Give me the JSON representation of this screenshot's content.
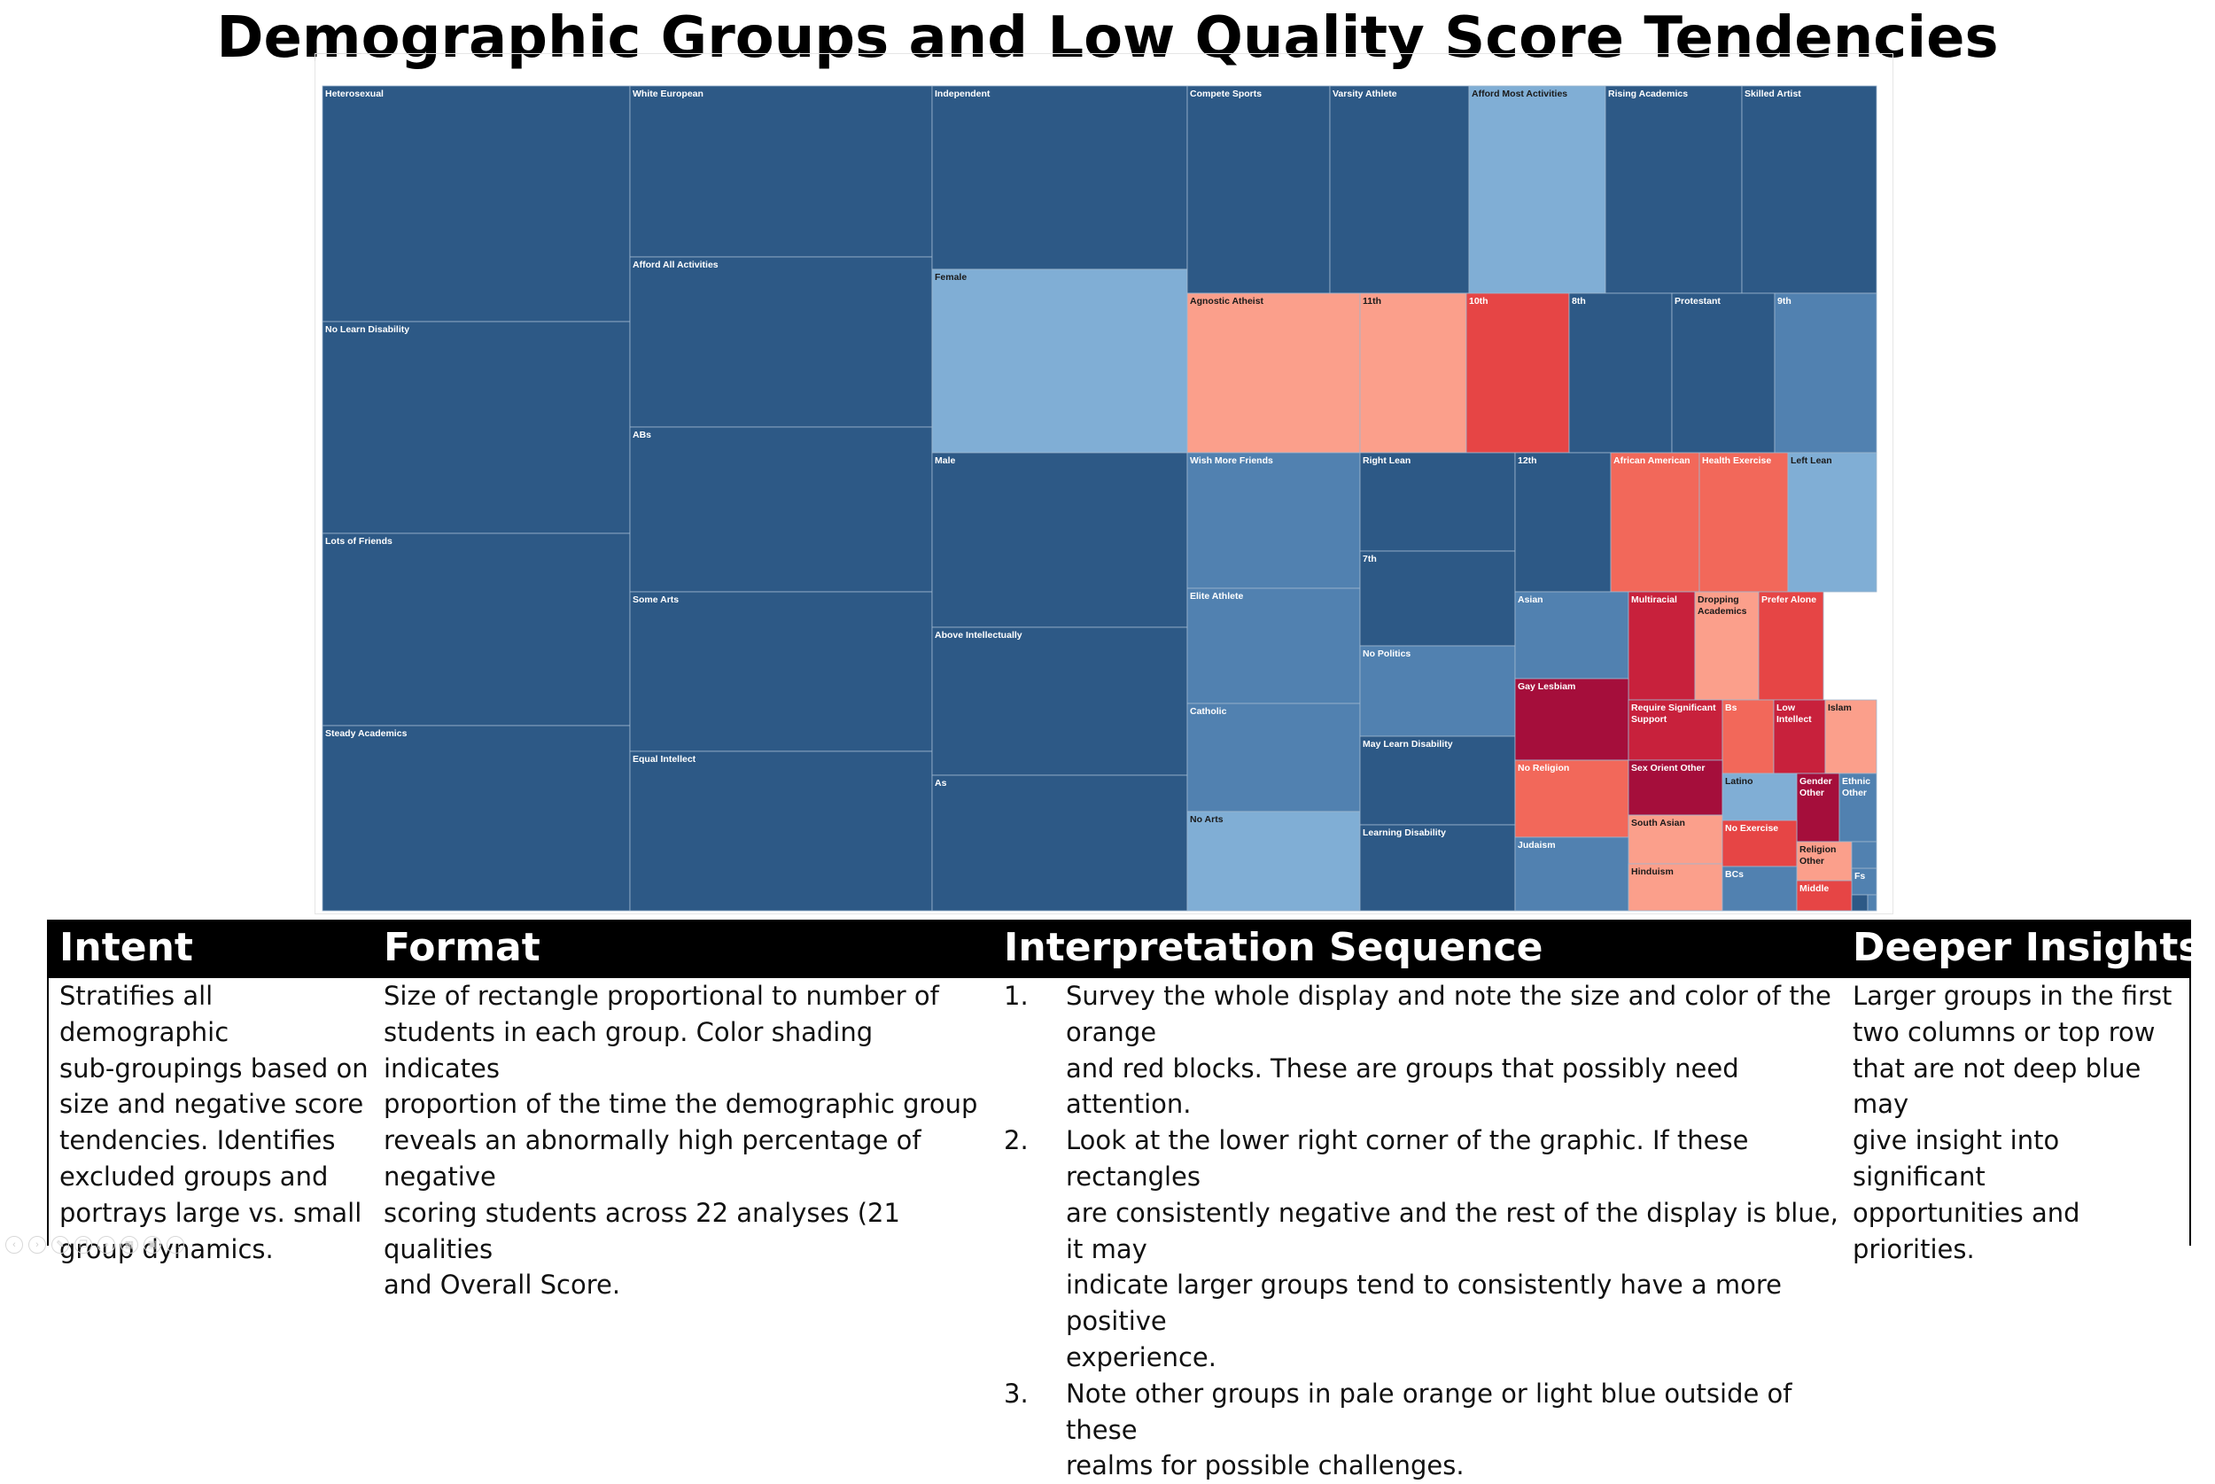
{
  "chart_data": {
    "type": "treemap",
    "title": "Demographic Groups and Low Quality Score Tendencies",
    "size_meaning": "number of students in each group",
    "color_meaning": "proportion of negative-score analyses (blue = low, red = high)",
    "colors": {
      "deep_blue": "#2d5986",
      "mid_blue": "#5181b0",
      "light_blue": "#80aed5",
      "pale_orange": "#fb9f8b",
      "orange_red": "#f2685a",
      "red": "#e64545",
      "crimson": "#c8213c",
      "dark_crimson": "#a50e3b"
    },
    "groups": [
      {
        "label": "Heterosexual",
        "color": "deep_blue"
      },
      {
        "label": "No Learn Disability",
        "color": "deep_blue"
      },
      {
        "label": "Lots of Friends",
        "color": "deep_blue"
      },
      {
        "label": "Steady Academics",
        "color": "deep_blue"
      },
      {
        "label": "White European",
        "color": "deep_blue"
      },
      {
        "label": "Afford All Activities",
        "color": "deep_blue"
      },
      {
        "label": "ABs",
        "color": "deep_blue"
      },
      {
        "label": "Some Arts",
        "color": "deep_blue"
      },
      {
        "label": "Equal Intellect",
        "color": "deep_blue"
      },
      {
        "label": "Independent",
        "color": "deep_blue"
      },
      {
        "label": "Female",
        "color": "light_blue"
      },
      {
        "label": "Male",
        "color": "deep_blue"
      },
      {
        "label": "Above Intellectually",
        "color": "deep_blue"
      },
      {
        "label": "As",
        "color": "deep_blue"
      },
      {
        "label": "Compete Sports",
        "color": "deep_blue"
      },
      {
        "label": "Varsity Athlete",
        "color": "deep_blue"
      },
      {
        "label": "Afford Most Activities",
        "color": "light_blue"
      },
      {
        "label": "Rising Academics",
        "color": "deep_blue"
      },
      {
        "label": "Skilled Artist",
        "color": "deep_blue"
      },
      {
        "label": "Agnostic Atheist",
        "color": "pale_orange"
      },
      {
        "label": "11th",
        "color": "pale_orange"
      },
      {
        "label": "10th",
        "color": "red"
      },
      {
        "label": "8th",
        "color": "deep_blue"
      },
      {
        "label": "Protestant",
        "color": "deep_blue"
      },
      {
        "label": "9th",
        "color": "mid_blue"
      },
      {
        "label": "Wish More Friends",
        "color": "mid_blue"
      },
      {
        "label": "Elite Athlete",
        "color": "mid_blue"
      },
      {
        "label": "Catholic",
        "color": "mid_blue"
      },
      {
        "label": "No Arts",
        "color": "light_blue"
      },
      {
        "label": "Right Lean",
        "color": "deep_blue"
      },
      {
        "label": "7th",
        "color": "deep_blue"
      },
      {
        "label": "No Politics",
        "color": "mid_blue"
      },
      {
        "label": "May Learn Disability",
        "color": "deep_blue"
      },
      {
        "label": "Learning Disability",
        "color": "deep_blue"
      },
      {
        "label": "12th",
        "color": "deep_blue"
      },
      {
        "label": "African American",
        "color": "orange_red"
      },
      {
        "label": "Health Exercise",
        "color": "orange_red"
      },
      {
        "label": "Left Lean",
        "color": "light_blue"
      },
      {
        "label": "Asian",
        "color": "mid_blue"
      },
      {
        "label": "Multiracial",
        "color": "crimson"
      },
      {
        "label": "Dropping Academics",
        "color": "pale_orange"
      },
      {
        "label": "Prefer Alone",
        "color": "red"
      },
      {
        "label": "Gay Lesbiam",
        "color": "dark_crimson"
      },
      {
        "label": "Require Significant Support",
        "color": "crimson"
      },
      {
        "label": "Bs",
        "color": "orange_red"
      },
      {
        "label": "Low Intellect",
        "color": "crimson"
      },
      {
        "label": "Islam",
        "color": "pale_orange"
      },
      {
        "label": "No Religion",
        "color": "orange_red"
      },
      {
        "label": "Sex Orient Other",
        "color": "dark_crimson"
      },
      {
        "label": "Latino",
        "color": "light_blue"
      },
      {
        "label": "Gender Other",
        "color": "dark_crimson"
      },
      {
        "label": "Ethnic Other",
        "color": "mid_blue"
      },
      {
        "label": "South Asian",
        "color": "pale_orange"
      },
      {
        "label": "No Exercise",
        "color": "red"
      },
      {
        "label": "Religion Other",
        "color": "pale_orange"
      },
      {
        "label": "Judaism",
        "color": "mid_blue"
      },
      {
        "label": "Hinduism",
        "color": "pale_orange"
      },
      {
        "label": "BCs",
        "color": "mid_blue"
      },
      {
        "label": "Fs",
        "color": "mid_blue"
      },
      {
        "label": "Middle",
        "color": "red"
      }
    ]
  },
  "panel": {
    "intent": {
      "heading": "Intent",
      "lines": [
        "Stratifies all demographic",
        "sub-groupings based on",
        "size and negative score",
        "tendencies. Identifies",
        "excluded groups and",
        "portrays large vs. small",
        "group dynamics."
      ]
    },
    "format": {
      "heading": "Format",
      "lines": [
        "Size of rectangle proportional to number of",
        "students in each group. Color shading indicates",
        "proportion of the time the demographic group",
        "reveals an abnormally high percentage of negative",
        "scoring students across 22 analyses (21 qualities",
        "and Overall Score."
      ]
    },
    "sequence": {
      "heading": "Interpretation Sequence",
      "steps": [
        {
          "num": "1.",
          "lines": [
            "Survey the whole display and note the size and color of the orange",
            "and red blocks.  These are groups that possibly need attention."
          ]
        },
        {
          "num": "2.",
          "lines": [
            "Look at the lower right corner of the graphic. If these rectangles",
            "are consistently negative and the rest of the display is blue, it may",
            "indicate larger groups tend to consistently have a more positive",
            "experience."
          ]
        },
        {
          "num": "3.",
          "lines": [
            "Note other groups in pale orange or light blue outside of these",
            "realms for possible challenges."
          ]
        }
      ]
    },
    "insights": {
      "heading": "Deeper Insights",
      "lines": [
        "Larger groups in the first",
        "two columns or top row",
        "that are not deep blue may",
        "give insight into significant",
        "opportunities and priorities."
      ]
    }
  },
  "controls": [
    "prev-icon",
    "next-icon",
    "pen-icon",
    "copy-icon",
    "zoom-icon",
    "grid-icon",
    "camera-icon",
    "more-icon"
  ]
}
